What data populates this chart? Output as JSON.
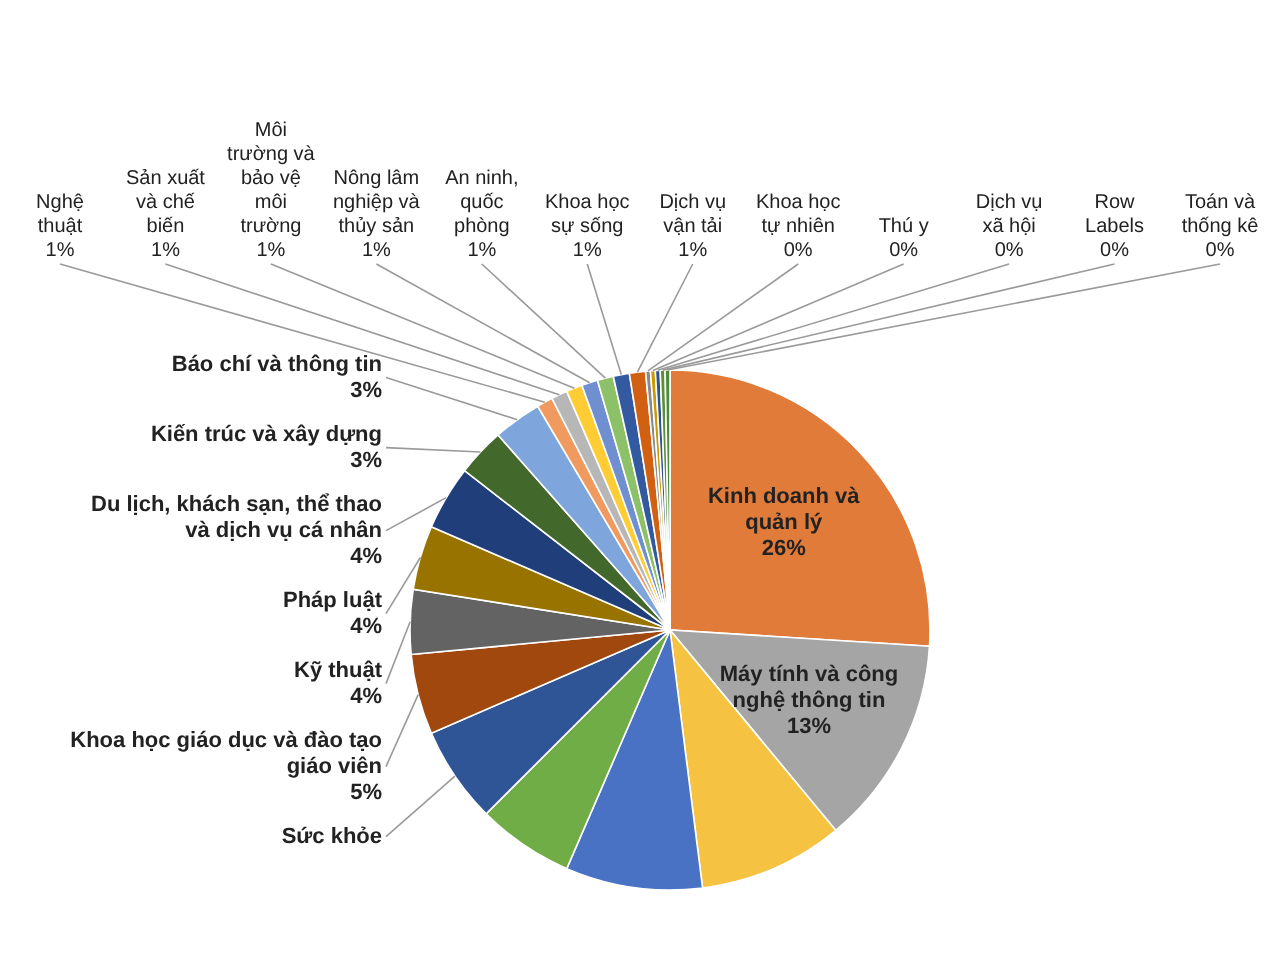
{
  "chart_data": {
    "type": "pie",
    "categories": [
      "Kinh doanh và quản lý",
      "Máy tính và công nghệ thông tin",
      null,
      null,
      null,
      "Sức khỏe",
      "Khoa học giáo dục và đào tạo giáo viên",
      "Kỹ thuật",
      "Pháp luật",
      "Du lịch, khách sạn, thể thao và dịch vụ cá nhân",
      "Kiến trúc và xây dựng",
      "Báo chí và thông tin",
      "Nghệ thuật",
      "Sản xuất và chế biến",
      "Môi trường và bảo vệ môi trường",
      "Nông lâm nghiệp và thủy sản",
      "An ninh, quốc phòng",
      "Khoa học sự sống",
      "Dịch vụ vận tải",
      "Khoa học tự nhiên",
      "Thú y",
      "Dịch vụ xã hội",
      "Row Labels",
      "Toán và thống kê"
    ],
    "values": [
      26,
      13,
      9,
      8.5,
      6,
      6,
      5,
      4,
      4,
      4,
      3,
      3,
      1,
      1,
      1,
      1,
      1,
      1,
      1,
      0.3,
      0.3,
      0.3,
      0.3,
      0.3
    ],
    "value_labels": [
      "26%",
      "13%",
      null,
      null,
      null,
      null,
      "5%",
      "4%",
      "4%",
      "4%",
      "3%",
      "3%",
      "1%",
      "1%",
      "1%",
      "1%",
      "1%",
      "1%",
      "1%",
      "0%",
      "0%",
      "0%",
      "0%",
      "0%"
    ],
    "colors": [
      "#e07b39",
      "#a5a5a5",
      "#f5c242",
      "#4a72c4",
      "#70ad47",
      "#2f5597",
      "#a0480e",
      "#636363",
      "#997300",
      "#203f7a",
      "#43682b",
      "#7ea6dc",
      "#f09a60",
      "#b7b7b7",
      "#ffcd33",
      "#6f8fd0",
      "#8cc168",
      "#335aa1",
      "#d26012",
      "#8a8a8a",
      "#cc9a00",
      "#2f528f",
      "#5b8f3a",
      "#4e8a3a"
    ]
  }
}
